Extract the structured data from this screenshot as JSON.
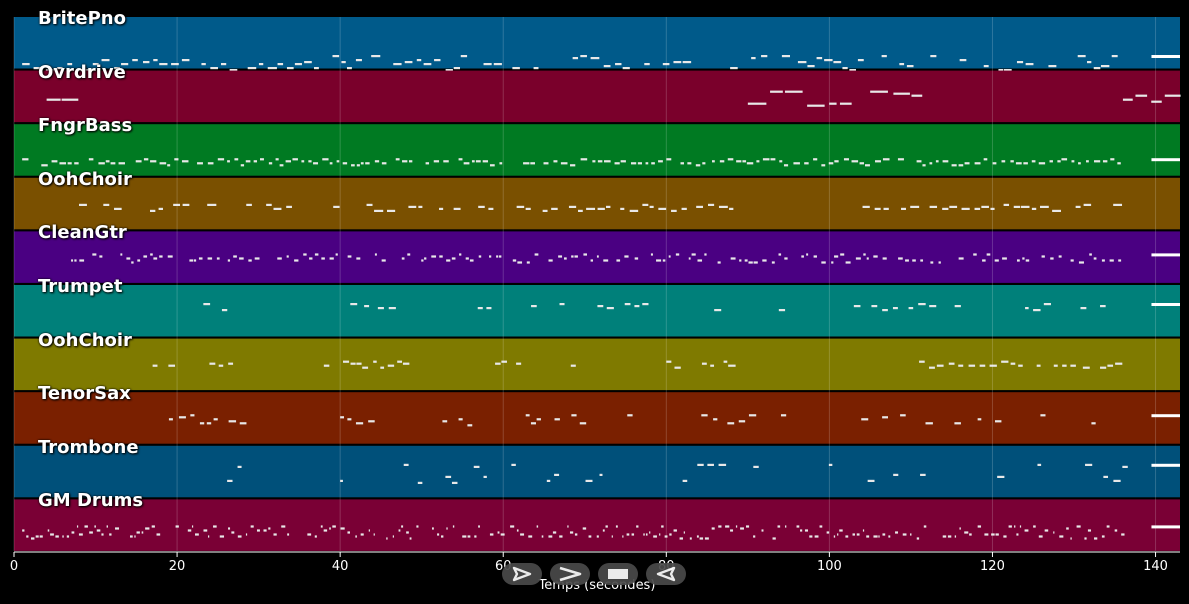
{
  "tracks": [
    {
      "name": "BritePno",
      "color": "#005a8a"
    },
    {
      "name": "Ovrdrive",
      "color": "#7a002b"
    },
    {
      "name": "FngrBass",
      "color": "#007a22"
    },
    {
      "name": "OohChoir",
      "color": "#7a5000"
    },
    {
      "name": "CleanGtr",
      "color": "#4a0082"
    },
    {
      "name": "Trumpet",
      "color": "#00807a"
    },
    {
      "name": "OohChoir",
      "color": "#7f7a00"
    },
    {
      "name": "TenorSax",
      "color": "#7a2000"
    },
    {
      "name": "Trombone",
      "color": "#00507a"
    },
    {
      "name": "GM Drums",
      "color": "#7a0035"
    }
  ],
  "x_axis": {
    "label": "Temps (secondes)",
    "min": 0,
    "max": 143,
    "ticks": [
      "0",
      "20",
      "40",
      "60",
      "80",
      "100",
      "120",
      "140"
    ]
  },
  "controls": {
    "play": "play-icon",
    "forward": "forward-icon",
    "stop": "stop-icon",
    "back": "back-icon"
  }
}
